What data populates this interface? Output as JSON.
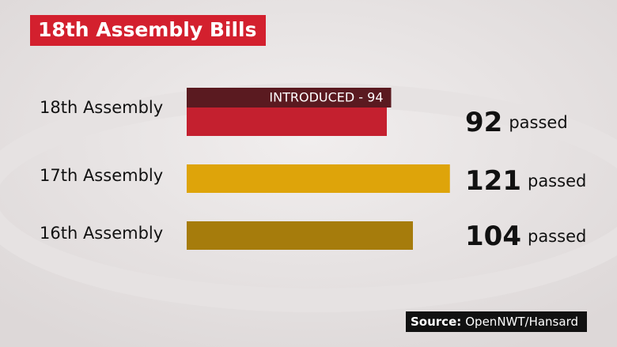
{
  "chart_data": {
    "type": "bar",
    "title": "18th Assembly Bills",
    "categories": [
      "18th Assembly",
      "17th Assembly",
      "16th Assembly"
    ],
    "values": [
      92,
      121,
      104
    ],
    "colors": [
      "#c4202f",
      "#dea40a",
      "#a67c0c"
    ],
    "value_suffix": "passed",
    "introduced": {
      "values": [
        94,
        null,
        null
      ],
      "value_labels": [
        "INTRODUCED - 94",
        null,
        null
      ],
      "color": "#5a1a20"
    },
    "source_label": "Source:",
    "source": "OpenNWT/Hansard"
  }
}
